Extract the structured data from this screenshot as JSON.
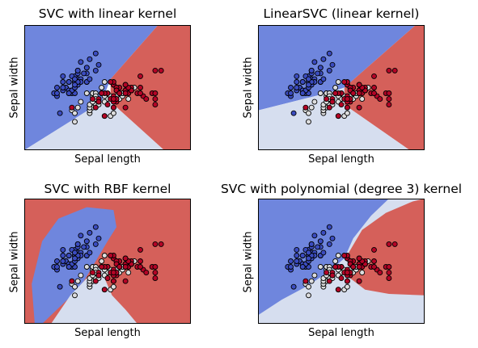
{
  "chart_data": [
    {
      "type": "scatter",
      "title": "SVC with linear kernel",
      "xlabel": "Sepal length",
      "ylabel": "Sepal width",
      "xlim": [
        3.3,
        8.9
      ],
      "ylim": [
        1.0,
        5.4
      ],
      "decision_regions": [
        {
          "name": "class-0",
          "color": "#6f86dd"
        },
        {
          "name": "class-1",
          "color": "#d6deef"
        },
        {
          "name": "class-2",
          "color": "#d5605a"
        }
      ]
    },
    {
      "type": "scatter",
      "title": "LinearSVC (linear kernel)",
      "xlabel": "Sepal length",
      "ylabel": "Sepal width",
      "xlim": [
        3.3,
        8.9
      ],
      "ylim": [
        1.0,
        5.4
      ],
      "decision_regions": [
        {
          "name": "class-0",
          "color": "#6f86dd"
        },
        {
          "name": "class-1",
          "color": "#d6deef"
        },
        {
          "name": "class-2",
          "color": "#d5605a"
        }
      ]
    },
    {
      "type": "scatter",
      "title": "SVC with RBF kernel",
      "xlabel": "Sepal length",
      "ylabel": "Sepal width",
      "xlim": [
        3.3,
        8.9
      ],
      "ylim": [
        1.0,
        5.4
      ],
      "decision_regions": [
        {
          "name": "class-0",
          "color": "#6f86dd"
        },
        {
          "name": "class-1",
          "color": "#d6deef"
        },
        {
          "name": "class-2",
          "color": "#d5605a"
        }
      ]
    },
    {
      "type": "scatter",
      "title": "SVC with polynomial (degree 3) kernel",
      "xlabel": "Sepal length",
      "ylabel": "Sepal width",
      "xlim": [
        3.3,
        8.9
      ],
      "ylim": [
        1.0,
        5.4
      ],
      "decision_regions": [
        {
          "name": "class-0",
          "color": "#6f86dd"
        },
        {
          "name": "class-1",
          "color": "#d6deef"
        },
        {
          "name": "class-2",
          "color": "#d5605a"
        }
      ]
    }
  ],
  "points": {
    "colors": {
      "0": "#3b4cc0",
      "1": "#ddddde",
      "2": "#b40426"
    },
    "class_0": [
      [
        5.1,
        3.5
      ],
      [
        4.9,
        3.0
      ],
      [
        4.7,
        3.2
      ],
      [
        4.6,
        3.1
      ],
      [
        5.0,
        3.6
      ],
      [
        5.4,
        3.9
      ],
      [
        4.6,
        3.4
      ],
      [
        5.0,
        3.4
      ],
      [
        4.4,
        2.9
      ],
      [
        4.9,
        3.1
      ],
      [
        5.4,
        3.7
      ],
      [
        4.8,
        3.4
      ],
      [
        4.8,
        3.0
      ],
      [
        4.3,
        3.0
      ],
      [
        5.8,
        4.0
      ],
      [
        5.7,
        4.4
      ],
      [
        5.4,
        3.9
      ],
      [
        5.1,
        3.5
      ],
      [
        5.7,
        3.8
      ],
      [
        5.1,
        3.8
      ],
      [
        5.4,
        3.4
      ],
      [
        5.1,
        3.7
      ],
      [
        4.6,
        3.6
      ],
      [
        5.1,
        3.3
      ],
      [
        4.8,
        3.4
      ],
      [
        5.0,
        3.0
      ],
      [
        5.0,
        3.4
      ],
      [
        5.2,
        3.5
      ],
      [
        5.2,
        3.4
      ],
      [
        4.7,
        3.2
      ],
      [
        4.8,
        3.1
      ],
      [
        5.4,
        3.4
      ],
      [
        5.2,
        4.1
      ],
      [
        5.5,
        4.2
      ],
      [
        4.9,
        3.1
      ],
      [
        5.0,
        3.2
      ],
      [
        5.5,
        3.5
      ],
      [
        4.9,
        3.6
      ],
      [
        4.4,
        3.0
      ],
      [
        5.1,
        3.4
      ],
      [
        5.0,
        3.5
      ],
      [
        4.5,
        2.3
      ],
      [
        4.4,
        3.2
      ],
      [
        5.0,
        3.5
      ],
      [
        5.1,
        3.8
      ],
      [
        4.8,
        3.0
      ],
      [
        5.1,
        3.8
      ],
      [
        4.6,
        3.2
      ],
      [
        5.3,
        3.7
      ],
      [
        5.0,
        3.3
      ]
    ],
    "class_1": [
      [
        7.0,
        3.2
      ],
      [
        6.4,
        3.2
      ],
      [
        6.9,
        3.1
      ],
      [
        5.5,
        2.3
      ],
      [
        6.5,
        2.8
      ],
      [
        5.7,
        2.8
      ],
      [
        6.3,
        3.3
      ],
      [
        4.9,
        2.4
      ],
      [
        6.6,
        2.9
      ],
      [
        5.2,
        2.7
      ],
      [
        5.0,
        2.0
      ],
      [
        5.9,
        3.0
      ],
      [
        6.0,
        2.2
      ],
      [
        6.1,
        2.9
      ],
      [
        5.6,
        2.9
      ],
      [
        6.7,
        3.1
      ],
      [
        5.6,
        3.0
      ],
      [
        5.8,
        2.7
      ],
      [
        6.2,
        2.2
      ],
      [
        5.6,
        2.5
      ],
      [
        5.9,
        3.2
      ],
      [
        6.1,
        2.8
      ],
      [
        6.3,
        2.5
      ],
      [
        6.1,
        2.8
      ],
      [
        6.4,
        2.9
      ],
      [
        6.6,
        3.0
      ],
      [
        6.8,
        2.8
      ],
      [
        6.7,
        3.0
      ],
      [
        6.0,
        2.9
      ],
      [
        5.7,
        2.6
      ],
      [
        5.5,
        2.4
      ],
      [
        5.5,
        2.4
      ],
      [
        5.8,
        2.7
      ],
      [
        6.0,
        2.7
      ],
      [
        5.4,
        3.0
      ],
      [
        6.0,
        3.4
      ],
      [
        6.7,
        3.1
      ],
      [
        6.3,
        2.3
      ],
      [
        5.6,
        3.0
      ],
      [
        5.5,
        2.5
      ],
      [
        5.5,
        2.6
      ],
      [
        6.1,
        3.0
      ],
      [
        5.8,
        2.6
      ],
      [
        5.0,
        2.3
      ],
      [
        5.6,
        2.7
      ],
      [
        5.7,
        3.0
      ],
      [
        5.7,
        2.9
      ],
      [
        6.2,
        2.9
      ],
      [
        5.1,
        2.5
      ],
      [
        5.7,
        2.8
      ]
    ],
    "class_2": [
      [
        6.3,
        3.3
      ],
      [
        5.8,
        2.7
      ],
      [
        7.1,
        3.0
      ],
      [
        6.3,
        2.9
      ],
      [
        6.5,
        3.0
      ],
      [
        7.6,
        3.0
      ],
      [
        4.9,
        2.5
      ],
      [
        7.3,
        2.9
      ],
      [
        6.7,
        2.5
      ],
      [
        7.2,
        3.6
      ],
      [
        6.5,
        3.2
      ],
      [
        6.4,
        2.7
      ],
      [
        6.8,
        3.0
      ],
      [
        5.7,
        2.5
      ],
      [
        5.8,
        2.8
      ],
      [
        6.4,
        3.2
      ],
      [
        6.5,
        3.0
      ],
      [
        7.7,
        3.8
      ],
      [
        7.7,
        2.6
      ],
      [
        6.0,
        2.2
      ],
      [
        6.9,
        3.2
      ],
      [
        5.6,
        2.8
      ],
      [
        7.7,
        2.8
      ],
      [
        6.3,
        2.7
      ],
      [
        6.7,
        3.3
      ],
      [
        7.2,
        3.2
      ],
      [
        6.2,
        2.8
      ],
      [
        6.1,
        3.0
      ],
      [
        6.4,
        2.8
      ],
      [
        7.2,
        3.0
      ],
      [
        7.4,
        2.8
      ],
      [
        7.9,
        3.8
      ],
      [
        6.4,
        2.8
      ],
      [
        6.3,
        2.8
      ],
      [
        6.1,
        2.6
      ],
      [
        7.7,
        3.0
      ],
      [
        6.3,
        3.4
      ],
      [
        6.4,
        3.1
      ],
      [
        6.0,
        3.0
      ],
      [
        6.9,
        3.1
      ],
      [
        6.7,
        3.1
      ],
      [
        6.9,
        3.1
      ],
      [
        5.8,
        2.7
      ],
      [
        6.8,
        3.2
      ],
      [
        6.7,
        3.3
      ],
      [
        6.7,
        3.0
      ],
      [
        6.3,
        2.5
      ],
      [
        6.5,
        3.0
      ],
      [
        6.2,
        3.4
      ],
      [
        5.9,
        3.0
      ]
    ]
  }
}
